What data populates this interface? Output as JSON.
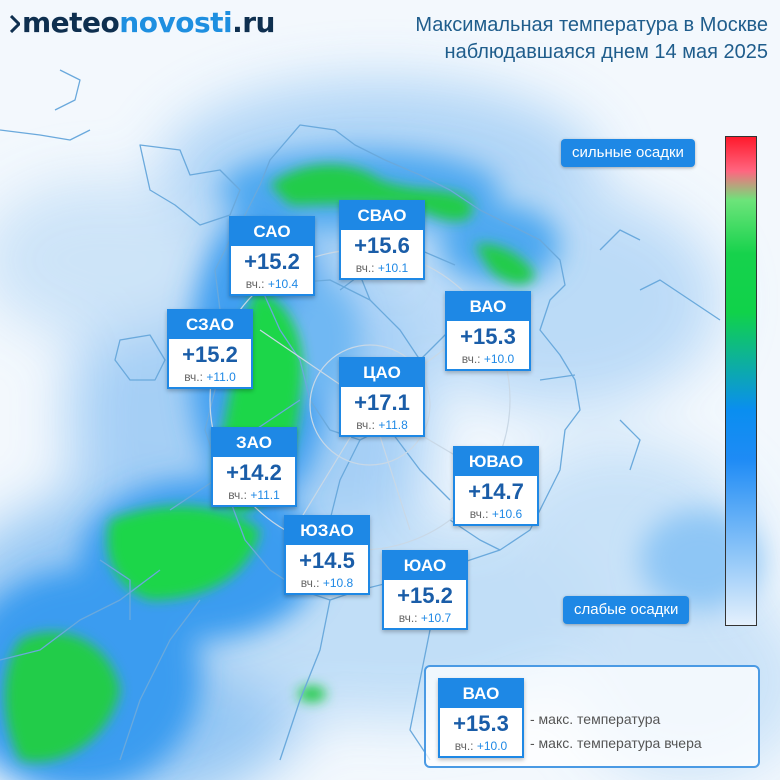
{
  "logo": {
    "part1": "meteo",
    "part2": "novosti",
    "part3": ".ru"
  },
  "title": {
    "line1": "Максимальная температура в Москве",
    "line2": "наблюдавшаяся днем 14 мая 2025"
  },
  "prev_prefix": "вч.:",
  "districts": [
    {
      "id": "sao",
      "name": "САО",
      "temp": "+15.2",
      "prev": "+10.4"
    },
    {
      "id": "svao",
      "name": "СВАО",
      "temp": "+15.6",
      "prev": "+10.1"
    },
    {
      "id": "szao",
      "name": "СЗАО",
      "temp": "+15.2",
      "prev": "+11.0"
    },
    {
      "id": "vao",
      "name": "ВАО",
      "temp": "+15.3",
      "prev": "+10.0"
    },
    {
      "id": "cao",
      "name": "ЦАО",
      "temp": "+17.1",
      "prev": "+11.8"
    },
    {
      "id": "zao",
      "name": "ЗАО",
      "temp": "+14.2",
      "prev": "+11.1"
    },
    {
      "id": "yuvao",
      "name": "ЮВАО",
      "temp": "+14.7",
      "prev": "+10.6"
    },
    {
      "id": "yuzao",
      "name": "ЮЗАО",
      "temp": "+14.5",
      "prev": "+10.8"
    },
    {
      "id": "yuao",
      "name": "ЮАО",
      "temp": "+15.2",
      "prev": "+10.7"
    }
  ],
  "scale": {
    "top_label": "сильные осадки",
    "bottom_label": "слабые осадки"
  },
  "legend": {
    "example": {
      "name": "ВАО",
      "temp": "+15.3",
      "prev": "+10.0"
    },
    "max_label": "- макс. температура",
    "prev_label": "- макс. температура вчера"
  },
  "colors": {
    "accent": "#1e88e5",
    "temp_text": "#1a5da8",
    "precip_green": "#1ed64a",
    "precip_blue": "#1e8bf5",
    "background": "#f3f8fd"
  }
}
